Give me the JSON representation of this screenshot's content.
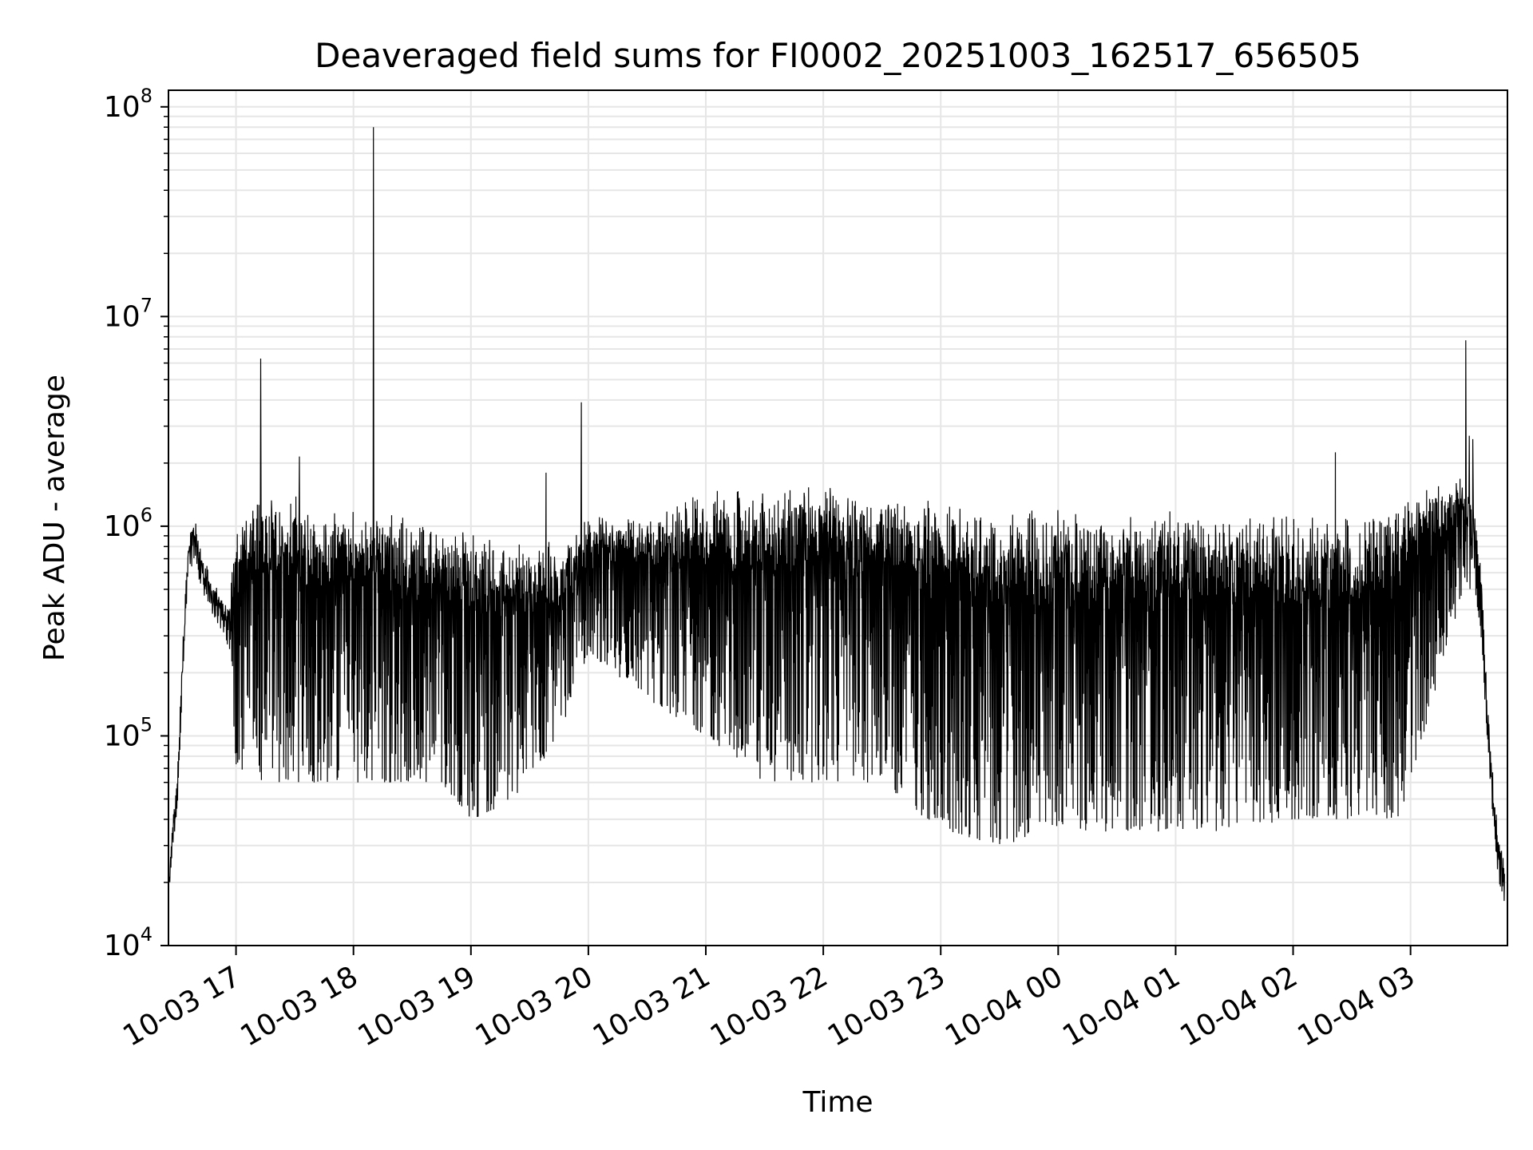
{
  "chart_data": {
    "type": "line",
    "title": "Deaveraged field sums for FI0002_20251003_162517_656505",
    "xlabel": "Time",
    "ylabel": "Peak ADU - average",
    "yscale": "log",
    "ylim": [
      10000,
      120000000
    ],
    "y_ticks": [
      {
        "base": "10",
        "exp": "4",
        "value": 10000
      },
      {
        "base": "10",
        "exp": "5",
        "value": 100000
      },
      {
        "base": "10",
        "exp": "6",
        "value": 1000000
      },
      {
        "base": "10",
        "exp": "7",
        "value": 10000000
      },
      {
        "base": "10",
        "exp": "8",
        "value": 100000000
      }
    ],
    "xlim_hours": [
      16.425,
      27.825
    ],
    "x_ticks": [
      {
        "label": "10-03 17",
        "hour": 17
      },
      {
        "label": "10-03 18",
        "hour": 18
      },
      {
        "label": "10-03 19",
        "hour": 19
      },
      {
        "label": "10-03 20",
        "hour": 20
      },
      {
        "label": "10-03 21",
        "hour": 21
      },
      {
        "label": "10-03 22",
        "hour": 22
      },
      {
        "label": "10-03 23",
        "hour": 23
      },
      {
        "label": "10-04 00",
        "hour": 24
      },
      {
        "label": "10-04 01",
        "hour": 25
      },
      {
        "label": "10-04 02",
        "hour": 26
      },
      {
        "label": "10-04 03",
        "hour": 27
      }
    ],
    "grid": true,
    "line_color": "#000000",
    "grid_color": "#e6e6e6",
    "profile": {
      "hours": [
        16.43,
        16.45,
        16.5,
        16.55,
        16.6,
        16.65,
        16.7,
        16.8,
        16.9,
        16.95,
        17.0,
        17.25,
        17.5,
        17.75,
        18.0,
        18.25,
        18.5,
        18.75,
        19.0,
        19.25,
        19.5,
        19.75,
        20.0,
        20.5,
        21.0,
        21.5,
        22.0,
        22.5,
        23.0,
        23.5,
        24.0,
        24.5,
        25.0,
        25.5,
        26.0,
        26.5,
        26.9,
        27.2,
        27.45,
        27.55,
        27.6,
        27.65,
        27.7,
        27.75,
        27.8
      ],
      "top": [
        20000,
        30000,
        60000,
        300000,
        900000,
        1000000,
        700000,
        500000,
        420000,
        400000,
        1000000,
        1200000,
        1250000,
        1050000,
        1100000,
        1100000,
        950000,
        900000,
        850000,
        800000,
        850000,
        700000,
        1000000,
        1050000,
        1350000,
        1400000,
        1400000,
        1300000,
        1200000,
        1050000,
        1050000,
        1000000,
        1050000,
        1050000,
        1000000,
        1000000,
        1200000,
        1500000,
        1500000,
        1100000,
        600000,
        150000,
        60000,
        30000,
        25000
      ],
      "low": [
        16000,
        25000,
        45000,
        200000,
        600000,
        700000,
        500000,
        380000,
        300000,
        250000,
        70000,
        60000,
        60000,
        60000,
        60000,
        60000,
        60000,
        60000,
        40000,
        45000,
        60000,
        100000,
        250000,
        150000,
        100000,
        60000,
        60000,
        60000,
        35000,
        30000,
        35000,
        35000,
        35000,
        35000,
        40000,
        40000,
        40000,
        150000,
        500000,
        500000,
        300000,
        100000,
        40000,
        20000,
        16000
      ]
    },
    "spikes": [
      {
        "hour": 17.21,
        "value": 6300000
      },
      {
        "hour": 18.17,
        "value": 80000000
      },
      {
        "hour": 19.94,
        "value": 3900000
      },
      {
        "hour": 19.64,
        "value": 1800000
      },
      {
        "hour": 17.54,
        "value": 2150000
      },
      {
        "hour": 26.36,
        "value": 2250000
      },
      {
        "hour": 27.47,
        "value": 7700000
      },
      {
        "hour": 27.5,
        "value": 2700000
      },
      {
        "hour": 27.53,
        "value": 2600000
      }
    ]
  }
}
